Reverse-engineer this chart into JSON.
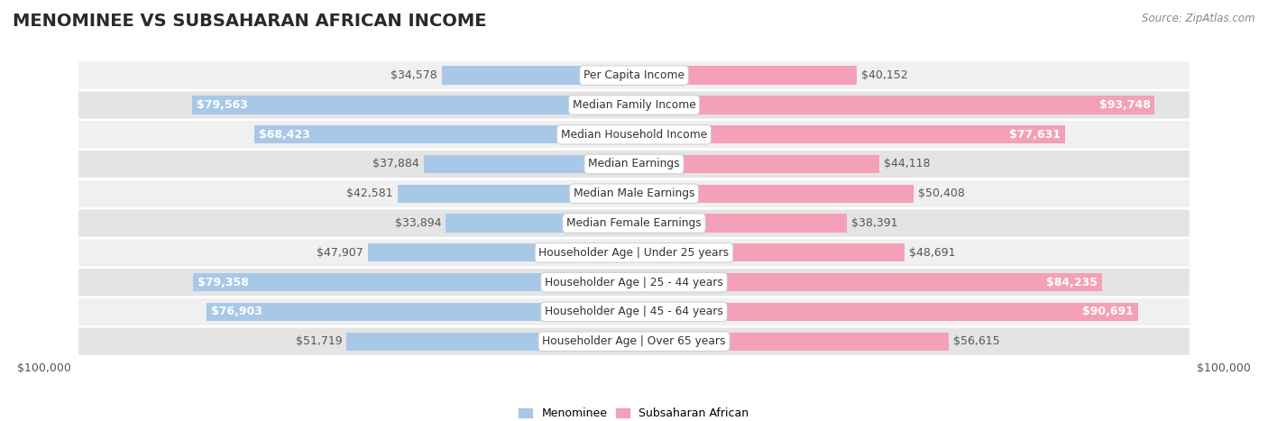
{
  "title": "MENOMINEE VS SUBSAHARAN AFRICAN INCOME",
  "source": "Source: ZipAtlas.com",
  "categories": [
    "Per Capita Income",
    "Median Family Income",
    "Median Household Income",
    "Median Earnings",
    "Median Male Earnings",
    "Median Female Earnings",
    "Householder Age | Under 25 years",
    "Householder Age | 25 - 44 years",
    "Householder Age | 45 - 64 years",
    "Householder Age | Over 65 years"
  ],
  "menominee_values": [
    34578,
    79563,
    68423,
    37884,
    42581,
    33894,
    47907,
    79358,
    76903,
    51719
  ],
  "subsaharan_values": [
    40152,
    93748,
    77631,
    44118,
    50408,
    38391,
    48691,
    84235,
    90691,
    56615
  ],
  "menominee_color": "#a8c8e8",
  "subsaharan_color": "#f4a0b8",
  "menominee_label": "Menominee",
  "subsaharan_label": "Subsaharan African",
  "max_value": 100000,
  "x_axis_label_left": "$100,000",
  "x_axis_label_right": "$100,000",
  "row_bg_light": "#f0f0f0",
  "row_bg_dark": "#e4e4e4",
  "bar_height": 0.62,
  "label_fontsize": 9,
  "title_fontsize": 14,
  "value_threshold": 60000,
  "label_color_inside": "white",
  "label_color_outside": "#555555"
}
